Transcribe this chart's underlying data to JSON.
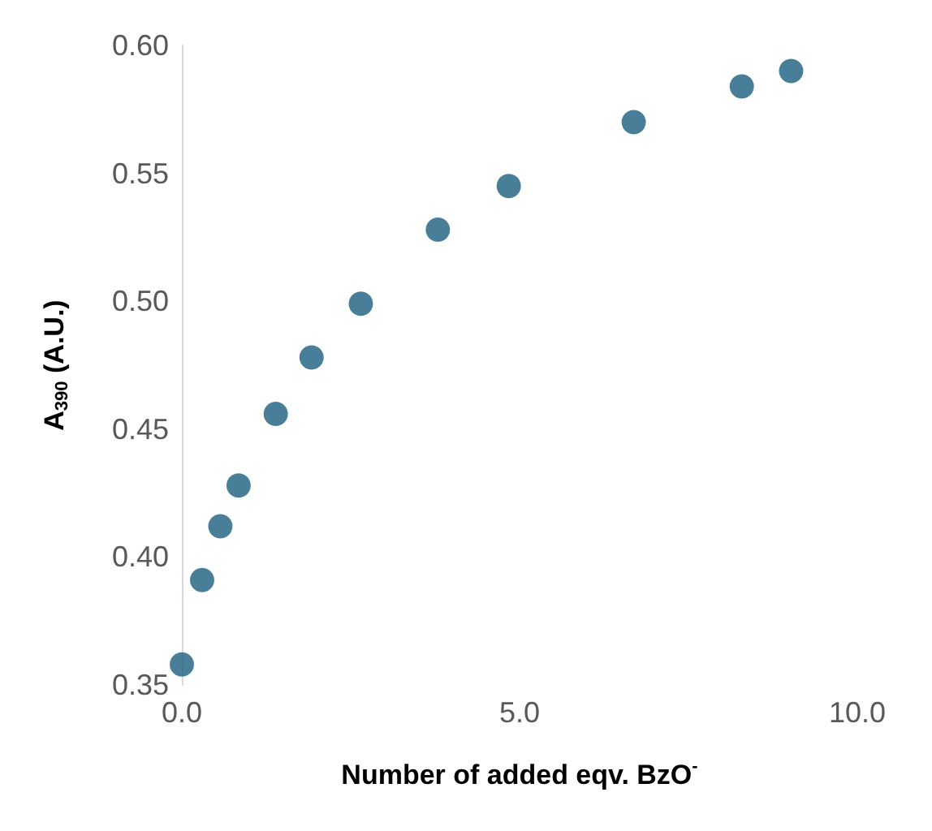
{
  "chart_data": {
    "type": "scatter",
    "xlabel": "Number of added eqv. BzO$^{-}$",
    "ylabel": "A$_{390}$ (A.U.)",
    "x": [
      0,
      0.3,
      0.57,
      0.84,
      1.39,
      1.92,
      2.65,
      3.79,
      4.84,
      6.69,
      8.29,
      9.02
    ],
    "series": [
      {
        "color": "#1b5e80",
        "values": [
          0.358,
          0.391,
          0.412,
          0.428,
          0.456,
          0.478,
          0.499,
          0.528,
          0.545,
          0.57,
          0.584,
          0.59
        ]
      }
    ],
    "xlim": [
      0,
      10
    ],
    "ylim": [
      0.35,
      0.6
    ],
    "xticks": [
      {
        "value": 0,
        "label": "0.0"
      },
      {
        "value": 5,
        "label": "5.0"
      },
      {
        "value": 10,
        "label": "10.0"
      }
    ],
    "yticks": [
      {
        "value": 0.35,
        "label": "0.35"
      },
      {
        "value": 0.4,
        "label": "0.40"
      },
      {
        "value": 0.45,
        "label": "0.45"
      },
      {
        "value": 0.5,
        "label": "0.50"
      },
      {
        "value": 0.55,
        "label": "0.55"
      },
      {
        "value": 0.6,
        "label": "0.60"
      }
    ],
    "grid": false,
    "marker": "circle"
  }
}
